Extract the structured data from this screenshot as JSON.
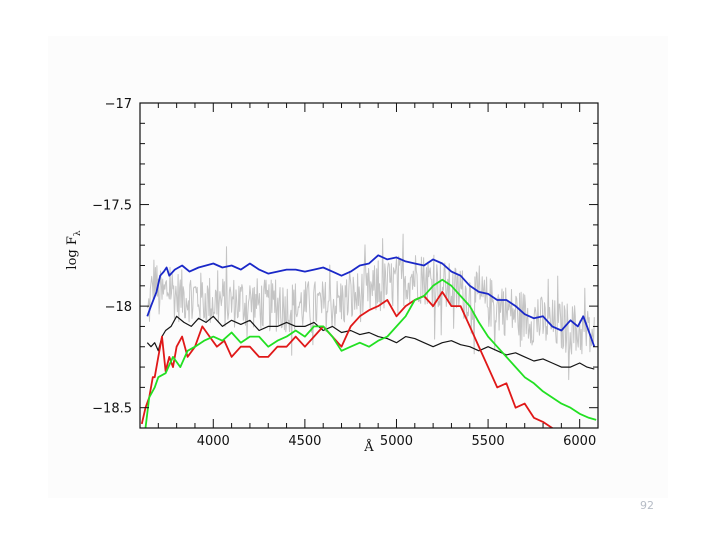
{
  "page": {
    "number": "92"
  },
  "colors": {
    "panel": "#fcfcfc",
    "axis": "#111111",
    "grey_spectrum": "#c4c4c4",
    "blue": "#1a28c8",
    "black": "#151515",
    "red": "#e01818",
    "green": "#22e022"
  },
  "chart_data": {
    "type": "line",
    "xlabel": "Å",
    "ylabel_main": "log F",
    "ylabel_sub": "λ",
    "xlim": [
      3600,
      6100
    ],
    "ylim": [
      -18.6,
      -17
    ],
    "x_ticks": [
      4000,
      4500,
      5000,
      5500,
      6000
    ],
    "x_tick_labels": [
      "4000",
      "4500",
      "5000",
      "5500",
      "6000"
    ],
    "y_ticks": [
      -17,
      -17.5,
      -18,
      -18.5
    ],
    "y_tick_labels": [
      "−17",
      "−17.5",
      "−18",
      "−18.5"
    ],
    "grid": false,
    "series": [
      {
        "key": "observed",
        "color": "#c4c4c4",
        "width": 1,
        "noise": 0.13,
        "x": [
          3640,
          3680,
          3700,
          3730,
          3760,
          3800,
          3900,
          4000,
          4100,
          4200,
          4300,
          4400,
          4500,
          4600,
          4700,
          4800,
          4900,
          5000,
          5100,
          5200,
          5300,
          5400,
          5500,
          5600,
          5700,
          5800,
          5900,
          6000,
          6080
        ],
        "values": [
          -18.05,
          -17.85,
          -17.95,
          -17.95,
          -17.9,
          -17.95,
          -17.95,
          -17.98,
          -17.98,
          -17.98,
          -18.0,
          -18.0,
          -18.0,
          -18.0,
          -17.98,
          -17.95,
          -17.92,
          -17.88,
          -17.85,
          -17.88,
          -17.92,
          -17.95,
          -17.98,
          -18.02,
          -18.05,
          -18.08,
          -18.1,
          -18.12,
          -18.15
        ]
      },
      {
        "key": "blue",
        "color": "#1a28c8",
        "width": 1.8,
        "x": [
          3640,
          3660,
          3690,
          3710,
          3730,
          3745,
          3760,
          3790,
          3830,
          3870,
          3920,
          3960,
          4000,
          4050,
          4100,
          4150,
          4200,
          4250,
          4300,
          4350,
          4400,
          4450,
          4500,
          4550,
          4600,
          4650,
          4700,
          4750,
          4800,
          4850,
          4900,
          4950,
          5000,
          5050,
          5100,
          5150,
          5200,
          5250,
          5300,
          5350,
          5400,
          5450,
          5500,
          5550,
          5600,
          5650,
          5700,
          5750,
          5800,
          5850,
          5900,
          5950,
          5990,
          6020,
          6060,
          6080
        ],
        "values": [
          -18.05,
          -18.0,
          -17.93,
          -17.85,
          -17.83,
          -17.81,
          -17.85,
          -17.82,
          -17.8,
          -17.83,
          -17.81,
          -17.8,
          -17.79,
          -17.81,
          -17.8,
          -17.82,
          -17.79,
          -17.82,
          -17.84,
          -17.83,
          -17.82,
          -17.82,
          -17.83,
          -17.82,
          -17.81,
          -17.83,
          -17.85,
          -17.83,
          -17.8,
          -17.79,
          -17.75,
          -17.77,
          -17.76,
          -17.78,
          -17.79,
          -17.8,
          -17.77,
          -17.79,
          -17.83,
          -17.85,
          -17.9,
          -17.93,
          -17.94,
          -17.97,
          -17.97,
          -18.0,
          -18.04,
          -18.06,
          -18.05,
          -18.1,
          -18.12,
          -18.07,
          -18.1,
          -18.05,
          -18.15,
          -18.2
        ]
      },
      {
        "key": "black",
        "color": "#151515",
        "width": 1.2,
        "x": [
          3640,
          3660,
          3680,
          3700,
          3720,
          3740,
          3770,
          3800,
          3840,
          3880,
          3920,
          3960,
          4000,
          4050,
          4100,
          4150,
          4200,
          4250,
          4300,
          4350,
          4400,
          4450,
          4500,
          4550,
          4600,
          4650,
          4700,
          4750,
          4800,
          4850,
          4900,
          4950,
          5000,
          5050,
          5100,
          5150,
          5200,
          5250,
          5300,
          5350,
          5400,
          5450,
          5500,
          5550,
          5600,
          5650,
          5700,
          5750,
          5800,
          5850,
          5900,
          5950,
          6000,
          6040,
          6080
        ],
        "values": [
          -18.18,
          -18.2,
          -18.18,
          -18.22,
          -18.15,
          -18.12,
          -18.1,
          -18.05,
          -18.08,
          -18.1,
          -18.06,
          -18.08,
          -18.05,
          -18.1,
          -18.07,
          -18.09,
          -18.07,
          -18.12,
          -18.1,
          -18.1,
          -18.08,
          -18.1,
          -18.1,
          -18.08,
          -18.12,
          -18.1,
          -18.13,
          -18.12,
          -18.14,
          -18.13,
          -18.15,
          -18.16,
          -18.18,
          -18.15,
          -18.16,
          -18.18,
          -18.2,
          -18.18,
          -18.17,
          -18.19,
          -18.2,
          -18.22,
          -18.2,
          -18.22,
          -18.24,
          -18.23,
          -18.25,
          -18.27,
          -18.26,
          -18.28,
          -18.3,
          -18.3,
          -18.28,
          -18.3,
          -18.31
        ]
      },
      {
        "key": "red",
        "color": "#e01818",
        "width": 1.8,
        "x": [
          3610,
          3630,
          3650,
          3670,
          3680,
          3700,
          3720,
          3740,
          3760,
          3780,
          3800,
          3830,
          3860,
          3900,
          3940,
          3980,
          4020,
          4060,
          4100,
          4150,
          4200,
          4250,
          4300,
          4350,
          4400,
          4450,
          4500,
          4550,
          4600,
          4650,
          4700,
          4750,
          4800,
          4850,
          4900,
          4950,
          5000,
          5050,
          5100,
          5150,
          5200,
          5250,
          5300,
          5350,
          5400,
          5450,
          5500,
          5550,
          5600,
          5650,
          5700,
          5750,
          5800,
          5850,
          5900,
          5950
        ],
        "values": [
          -18.58,
          -18.5,
          -18.45,
          -18.35,
          -18.35,
          -18.25,
          -18.15,
          -18.32,
          -18.25,
          -18.3,
          -18.2,
          -18.15,
          -18.25,
          -18.2,
          -18.1,
          -18.15,
          -18.2,
          -18.17,
          -18.25,
          -18.2,
          -18.2,
          -18.25,
          -18.25,
          -18.2,
          -18.2,
          -18.15,
          -18.2,
          -18.15,
          -18.1,
          -18.15,
          -18.2,
          -18.1,
          -18.05,
          -18.02,
          -18.0,
          -17.97,
          -18.05,
          -18.0,
          -17.97,
          -17.95,
          -18.0,
          -17.93,
          -18.0,
          -18.0,
          -18.1,
          -18.2,
          -18.3,
          -18.4,
          -18.38,
          -18.5,
          -18.48,
          -18.55,
          -18.57,
          -18.6,
          -18.65,
          -18.7
        ]
      },
      {
        "key": "green",
        "color": "#22e022",
        "width": 1.8,
        "x": [
          3630,
          3650,
          3680,
          3700,
          3740,
          3780,
          3820,
          3860,
          3900,
          3950,
          4000,
          4050,
          4100,
          4150,
          4200,
          4250,
          4300,
          4350,
          4400,
          4450,
          4500,
          4550,
          4600,
          4650,
          4700,
          4750,
          4800,
          4850,
          4900,
          4950,
          5000,
          5050,
          5100,
          5150,
          5200,
          5250,
          5300,
          5350,
          5400,
          5450,
          5500,
          5550,
          5600,
          5650,
          5700,
          5750,
          5800,
          5850,
          5900,
          5950,
          6000,
          6050,
          6090
        ],
        "values": [
          -18.6,
          -18.45,
          -18.4,
          -18.35,
          -18.33,
          -18.25,
          -18.3,
          -18.22,
          -18.2,
          -18.17,
          -18.15,
          -18.17,
          -18.13,
          -18.18,
          -18.15,
          -18.15,
          -18.2,
          -18.17,
          -18.15,
          -18.12,
          -18.15,
          -18.1,
          -18.1,
          -18.15,
          -18.22,
          -18.2,
          -18.18,
          -18.2,
          -18.17,
          -18.15,
          -18.1,
          -18.05,
          -17.97,
          -17.95,
          -17.9,
          -17.87,
          -17.9,
          -17.95,
          -18.0,
          -18.08,
          -18.15,
          -18.2,
          -18.25,
          -18.3,
          -18.35,
          -18.38,
          -18.42,
          -18.45,
          -18.48,
          -18.5,
          -18.53,
          -18.55,
          -18.56
        ]
      }
    ]
  }
}
